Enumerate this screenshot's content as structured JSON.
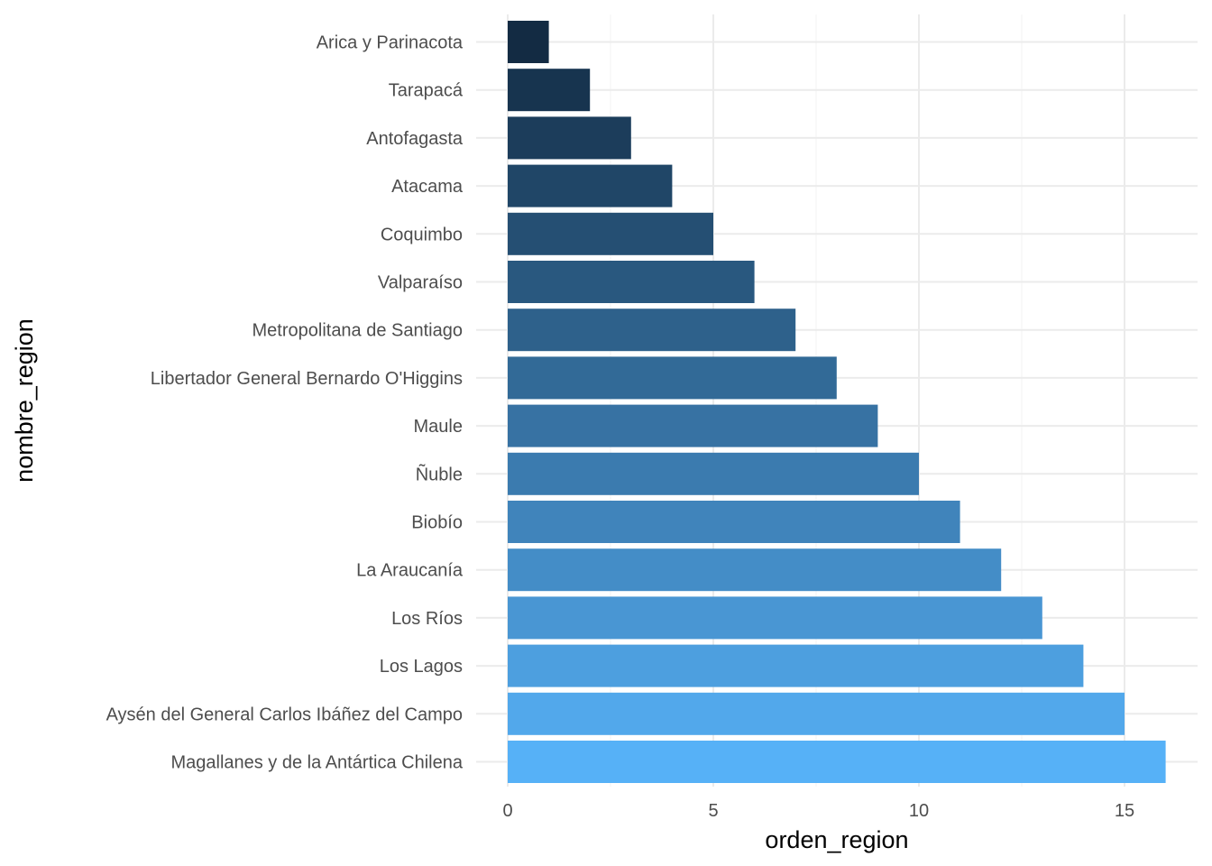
{
  "chart_data": {
    "type": "bar",
    "orientation": "horizontal",
    "xlabel": "orden_region",
    "ylabel": "nombre_region",
    "xlim": [
      0,
      16
    ],
    "xticks": [
      0,
      5,
      10,
      15
    ],
    "x_minor_ticks": [
      2.5,
      7.5,
      12.5
    ],
    "grid": true,
    "legend": "none",
    "categories": [
      "Arica y Parinacota",
      "Tarapacá",
      "Antofagasta",
      "Atacama",
      "Coquimbo",
      "Valparaíso",
      "Metropolitana de Santiago",
      "Libertador General Bernardo O'Higgins",
      "Maule",
      "Ñuble",
      "Biobío",
      "La Araucanía",
      "Los Ríos",
      "Los Lagos",
      "Aysén del General Carlos Ibáñez del Campo",
      "Magallanes y de la Antártica Chilena"
    ],
    "values": [
      1,
      2,
      3,
      4,
      5,
      6,
      7,
      8,
      9,
      10,
      11,
      12,
      13,
      14,
      15,
      16
    ],
    "color_low": "#132b43",
    "color_high": "#56b1f7"
  }
}
